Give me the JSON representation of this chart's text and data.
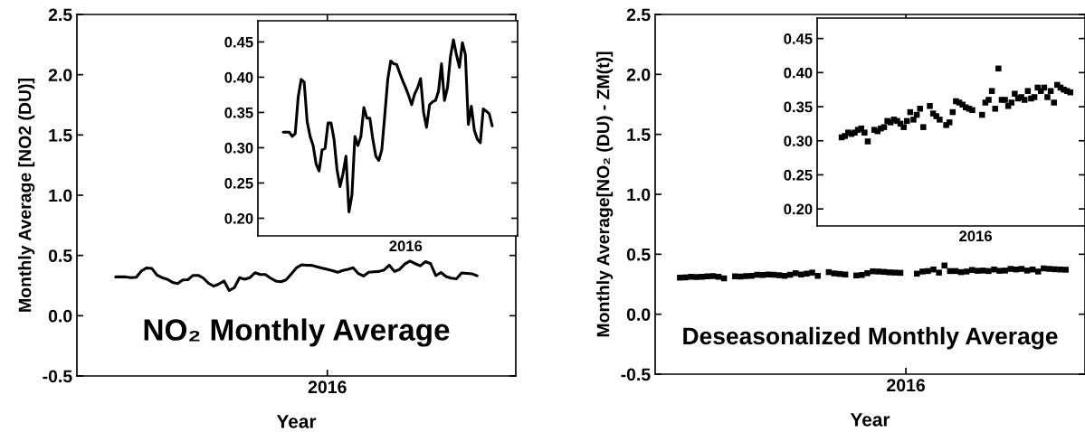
{
  "chart_data": [
    {
      "type": "line",
      "ylabel": "Monthly Average [NO2 (DU)]",
      "xlabel": "Year",
      "annotations": [
        "NO₂ Monthly Average"
      ],
      "color": "#000000",
      "line_style": "solid",
      "categories": [
        null,
        null,
        null,
        null,
        null,
        null,
        null,
        null,
        null,
        null,
        null,
        null,
        null,
        null,
        null,
        null,
        null,
        null,
        null,
        null,
        null,
        null,
        null,
        null,
        null,
        null,
        null,
        null,
        null,
        null,
        null,
        null,
        null,
        null,
        null,
        null,
        null,
        null,
        null,
        null,
        null,
        null,
        null,
        null,
        null,
        null,
        null,
        null,
        "2016",
        null,
        null,
        null,
        null,
        null,
        null,
        null,
        null,
        null,
        null,
        null,
        null,
        null,
        null,
        null,
        null,
        null,
        null,
        null,
        null,
        null,
        null,
        null,
        null,
        null,
        null,
        null,
        null,
        null,
        null,
        null,
        null,
        null,
        null,
        null,
        null
      ],
      "values": [
        null,
        null,
        null,
        null,
        null,
        null,
        null,
        0.322,
        0.322,
        0.322,
        0.316,
        0.32,
        0.372,
        0.397,
        0.393,
        0.337,
        0.316,
        0.303,
        0.277,
        0.267,
        0.297,
        0.299,
        0.335,
        0.335,
        0.312,
        0.269,
        0.245,
        0.263,
        0.288,
        0.209,
        0.233,
        0.316,
        0.303,
        0.316,
        0.357,
        0.342,
        0.342,
        0.312,
        0.288,
        0.282,
        0.297,
        0.346,
        0.397,
        0.423,
        0.419,
        0.418,
        0.406,
        0.395,
        0.385,
        0.374,
        0.361,
        0.376,
        0.385,
        0.398,
        0.35,
        0.329,
        0.361,
        0.365,
        0.367,
        0.38,
        0.419,
        0.367,
        0.385,
        0.429,
        0.453,
        0.432,
        0.414,
        0.449,
        0.432,
        0.333,
        0.359,
        0.325,
        0.312,
        0.307,
        0.355,
        0.352,
        0.348,
        0.331,
        null,
        null,
        null,
        null,
        null,
        null,
        null
      ],
      "ylim": [
        -0.5,
        2.5
      ],
      "yticks": [
        {
          "value": -0.5,
          "label": "-0.5"
        },
        {
          "value": 0,
          "label": "0.0"
        },
        0.5,
        {
          "value": 1,
          "label": "1.0"
        },
        1.5,
        {
          "value": 2,
          "label": "2.0"
        },
        2.5
      ]
    },
    {
      "type": "line",
      "color": "#000000",
      "line_style": "solid",
      "categories": [
        null,
        null,
        null,
        null,
        null,
        null,
        null,
        null,
        null,
        null,
        null,
        null,
        null,
        null,
        null,
        null,
        null,
        null,
        null,
        null,
        null,
        null,
        null,
        null,
        null,
        null,
        null,
        null,
        null,
        null,
        null,
        null,
        null,
        null,
        null,
        null,
        null,
        null,
        null,
        null,
        null,
        null,
        null,
        null,
        null,
        null,
        null,
        null,
        null,
        "2016",
        null,
        null,
        null,
        null,
        null,
        null,
        null,
        null,
        null,
        null,
        null,
        null,
        null,
        null,
        null,
        null,
        null,
        null,
        null,
        null,
        null,
        null,
        null,
        null,
        null,
        null,
        null,
        null,
        null,
        null,
        null,
        null,
        null,
        null,
        null,
        null,
        null
      ],
      "values": [
        null,
        null,
        null,
        null,
        null,
        null,
        null,
        null,
        0.322,
        0.322,
        0.322,
        0.316,
        0.32,
        0.372,
        0.397,
        0.393,
        0.337,
        0.316,
        0.303,
        0.277,
        0.267,
        0.297,
        0.299,
        0.335,
        0.335,
        0.312,
        0.269,
        0.245,
        0.263,
        0.288,
        0.209,
        0.233,
        0.316,
        0.303,
        0.316,
        0.357,
        0.342,
        0.342,
        0.312,
        0.288,
        0.282,
        0.297,
        0.346,
        0.397,
        0.423,
        0.419,
        0.418,
        0.406,
        0.395,
        0.385,
        0.374,
        0.361,
        0.376,
        0.385,
        0.398,
        0.35,
        0.329,
        0.361,
        0.365,
        0.367,
        0.38,
        0.419,
        0.367,
        0.385,
        0.429,
        0.453,
        0.432,
        0.414,
        0.449,
        0.432,
        0.333,
        0.359,
        0.325,
        0.312,
        0.307,
        0.355,
        0.352,
        0.348,
        0.331,
        null,
        null,
        null,
        null,
        null,
        null,
        null,
        null
      ],
      "ylim": [
        0.175,
        0.48
      ],
      "yticks": [
        {
          "value": 0.2,
          "label": "0.20"
        },
        0.25,
        {
          "value": 0.3,
          "label": "0.30"
        },
        0.35,
        {
          "value": 0.4,
          "label": "0.40"
        },
        0.45
      ]
    },
    {
      "type": "scatter",
      "ylabel": "Monthly Average[NO₂ (DU) - ZM(t)]",
      "xlabel": "Year",
      "annotations": [
        "Deseasonalized Monthly Average"
      ],
      "color": "#000000",
      "marker": "square",
      "categories": [
        null,
        null,
        null,
        null,
        null,
        null,
        null,
        null,
        null,
        null,
        null,
        null,
        null,
        null,
        null,
        null,
        null,
        null,
        null,
        null,
        null,
        null,
        null,
        null,
        null,
        null,
        null,
        null,
        null,
        null,
        null,
        null,
        null,
        null,
        null,
        null,
        null,
        null,
        null,
        null,
        null,
        null,
        null,
        null,
        null,
        "2016",
        null,
        null,
        null,
        null,
        null,
        null,
        null,
        null,
        null,
        null,
        null,
        null,
        null,
        null,
        null,
        null,
        null,
        null,
        null,
        null,
        null,
        null,
        null,
        null,
        null,
        null,
        null,
        null,
        null,
        null,
        null,
        null
      ],
      "values": [
        null,
        null,
        null,
        null,
        0.305,
        0.307,
        0.312,
        0.31,
        0.312,
        0.316,
        0.318,
        0.312,
        0.299,
        null,
        0.316,
        0.314,
        0.318,
        0.32,
        0.329,
        0.327,
        0.331,
        0.329,
        0.325,
        0.32,
        0.329,
        0.342,
        0.331,
        0.338,
        0.347,
        0.32,
        null,
        0.351,
        0.34,
        0.336,
        0.331,
        null,
        0.323,
        0.327,
        0.342,
        0.358,
        0.356,
        0.353,
        0.349,
        0.347,
        0.345,
        null,
        null,
        0.338,
        0.356,
        0.36,
        0.373,
        0.347,
        0.406,
        0.36,
        0.36,
        0.351,
        0.356,
        0.369,
        0.362,
        0.364,
        0.36,
        0.373,
        0.362,
        0.364,
        0.378,
        0.373,
        0.378,
        0.364,
        0.373,
        0.356,
        0.382,
        0.378,
        0.375,
        0.373,
        0.371,
        null,
        null,
        null
      ],
      "ylim": [
        -0.5,
        2.5
      ],
      "yticks": [
        {
          "value": -0.5,
          "label": "-0.5"
        },
        {
          "value": 0,
          "label": "0.0"
        },
        0.5,
        {
          "value": 1,
          "label": "1.0"
        },
        1.5,
        {
          "value": 2,
          "label": "2.0"
        },
        2.5
      ]
    },
    {
      "type": "scatter",
      "color": "#000000",
      "marker": "square",
      "categories": [
        null,
        null,
        null,
        null,
        null,
        null,
        null,
        null,
        null,
        null,
        null,
        null,
        null,
        null,
        null,
        null,
        null,
        null,
        null,
        null,
        null,
        null,
        null,
        null,
        null,
        null,
        null,
        null,
        null,
        null,
        null,
        null,
        null,
        null,
        null,
        null,
        null,
        null,
        null,
        null,
        null,
        null,
        null,
        null,
        null,
        null,
        null,
        null,
        "2016",
        null,
        null,
        null,
        null,
        null,
        null,
        null,
        null,
        null,
        null,
        null,
        null,
        null,
        null,
        null,
        null,
        null,
        null,
        null,
        null,
        null,
        null,
        null,
        null,
        null,
        null,
        null,
        null,
        null,
        null,
        null,
        null,
        null
      ],
      "values": [
        null,
        null,
        null,
        null,
        null,
        null,
        null,
        0.305,
        0.307,
        0.312,
        0.31,
        0.312,
        0.316,
        0.318,
        0.312,
        0.299,
        null,
        0.316,
        0.314,
        0.318,
        0.32,
        0.329,
        0.327,
        0.331,
        0.329,
        0.325,
        0.32,
        0.329,
        0.342,
        0.331,
        0.338,
        0.347,
        0.32,
        null,
        0.351,
        0.34,
        0.336,
        0.331,
        null,
        0.323,
        0.327,
        0.342,
        0.358,
        0.356,
        0.353,
        0.349,
        0.347,
        0.345,
        null,
        null,
        0.338,
        0.356,
        0.36,
        0.373,
        0.347,
        0.406,
        0.36,
        0.36,
        0.351,
        0.356,
        0.369,
        0.362,
        0.364,
        0.36,
        0.373,
        0.362,
        0.364,
        0.378,
        0.373,
        0.378,
        0.364,
        0.373,
        0.356,
        0.382,
        0.378,
        0.375,
        0.373,
        0.371,
        null,
        null,
        null,
        null
      ],
      "ylim": [
        0.175,
        0.48
      ],
      "yticks": [
        {
          "value": 0.2,
          "label": "0.20"
        },
        0.25,
        {
          "value": 0.3,
          "label": "0.30"
        },
        0.35,
        {
          "value": 0.4,
          "label": "0.40"
        },
        0.45
      ]
    }
  ]
}
